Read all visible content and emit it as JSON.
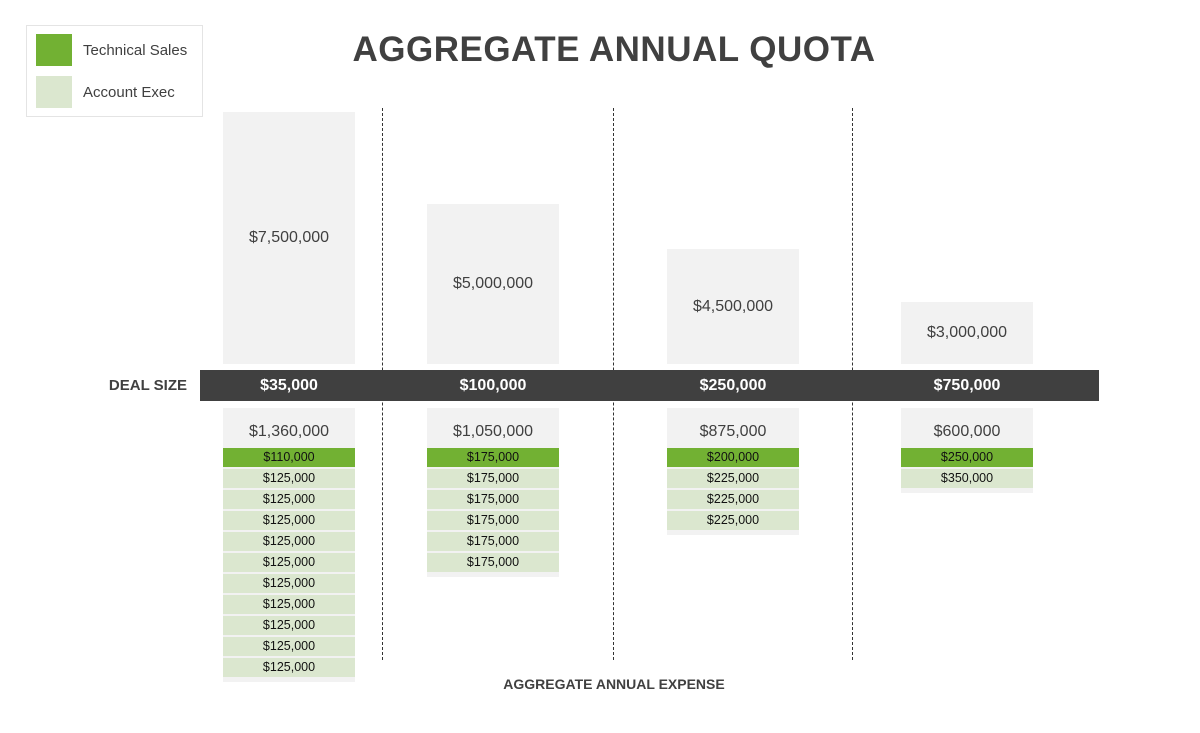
{
  "chart_data": {
    "type": "table",
    "title": "AGGREGATE ANNUAL QUOTA",
    "xlabel": "AGGREGATE ANNUAL EXPENSE",
    "row_label": "DEAL SIZE",
    "legend": [
      {
        "name": "Technical Sales",
        "color": "#72b133"
      },
      {
        "name": "Account Exec",
        "color": "#dbe7cf"
      }
    ],
    "legend_placement": "top-left",
    "columns": [
      {
        "deal_size": "$35,000",
        "quota": "$7,500,000",
        "expense_total": "$1,360,000",
        "technical_sales": [
          "$110,000"
        ],
        "account_exec": [
          "$125,000",
          "$125,000",
          "$125,000",
          "$125,000",
          "$125,000",
          "$125,000",
          "$125,000",
          "$125,000",
          "$125,000",
          "$125,000"
        ]
      },
      {
        "deal_size": "$100,000",
        "quota": "$5,000,000",
        "expense_total": "$1,050,000",
        "technical_sales": [
          "$175,000"
        ],
        "account_exec": [
          "$175,000",
          "$175,000",
          "$175,000",
          "$175,000",
          "$175,000"
        ]
      },
      {
        "deal_size": "$250,000",
        "quota": "$4,500,000",
        "expense_total": "$875,000",
        "technical_sales": [
          "$200,000"
        ],
        "account_exec": [
          "$225,000",
          "$225,000",
          "$225,000"
        ]
      },
      {
        "deal_size": "$750,000",
        "quota": "$3,000,000",
        "expense_total": "$600,000",
        "technical_sales": [
          "$250,000"
        ],
        "account_exec": [
          "$350,000"
        ]
      }
    ]
  }
}
